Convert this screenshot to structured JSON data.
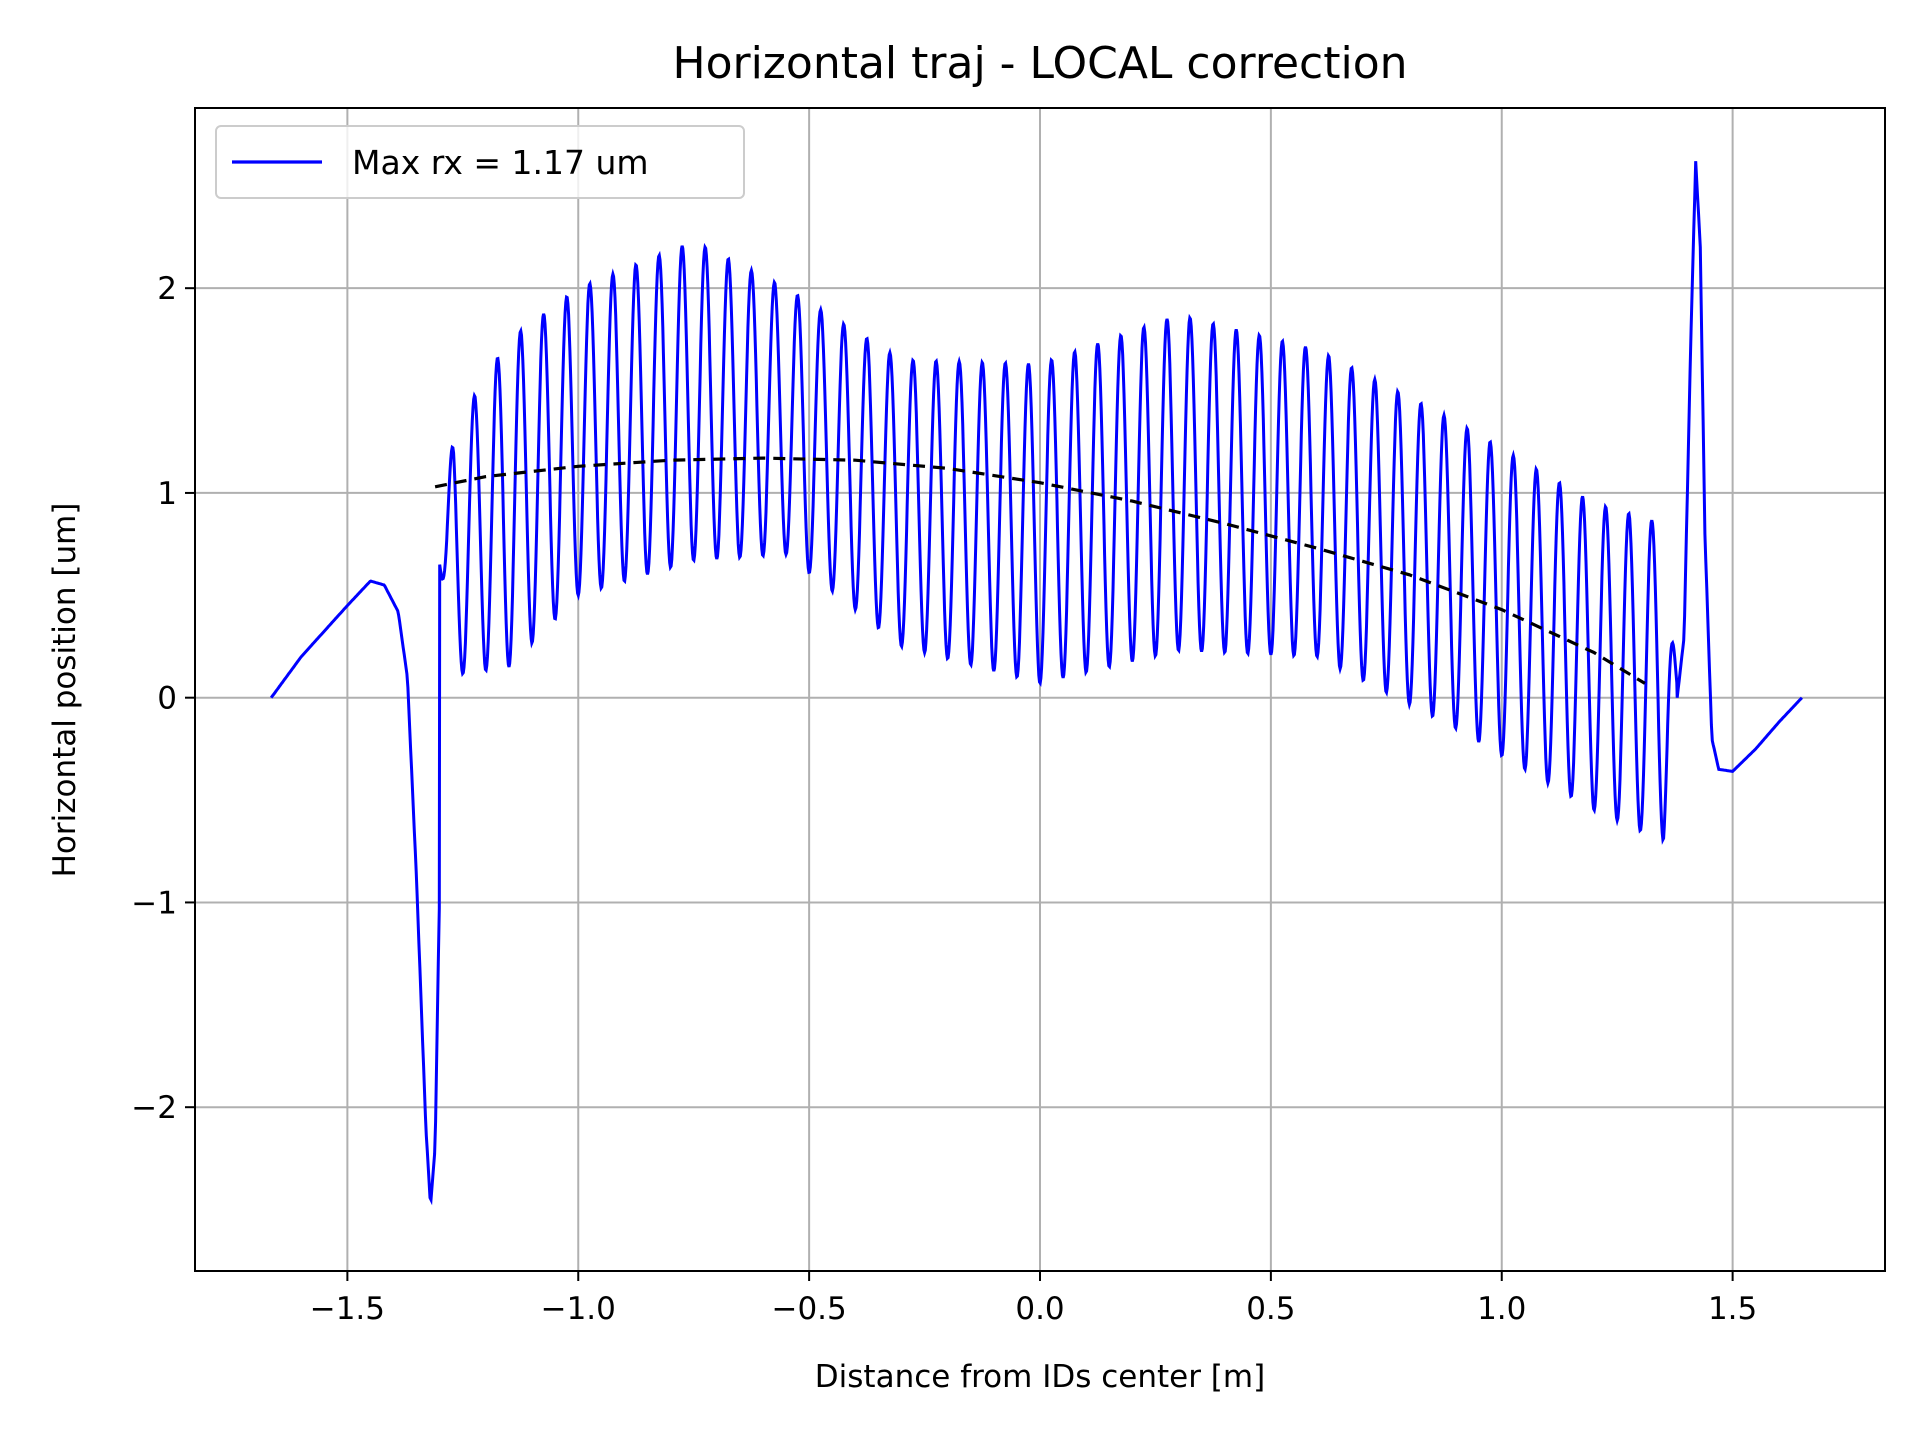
{
  "chart_data": {
    "type": "line",
    "title": "Horizontal traj - LOCAL correction",
    "xlabel": "Distance from IDs center [m]",
    "ylabel": "Horizontal position [um]",
    "xlim": [
      -1.83,
      1.83
    ],
    "ylim": [
      -2.8,
      2.88
    ],
    "x_ticks": [
      -1.5,
      -1.0,
      -0.5,
      0.0,
      0.5,
      1.0,
      1.5
    ],
    "x_tick_labels": [
      "−1.5",
      "−1.0",
      "−0.5",
      "0.0",
      "0.5",
      "1.0",
      "1.5"
    ],
    "y_ticks": [
      -2,
      -1,
      0,
      1,
      2
    ],
    "y_tick_labels": [
      "−2",
      "−1",
      "0",
      "1",
      "2"
    ],
    "grid": true,
    "legend": {
      "placement": "top-left",
      "entries": [
        "Max rx = 1.17 um"
      ]
    },
    "series": [
      {
        "name": "Max rx = 1.17 um",
        "color": "#0000ff",
        "style": "solid",
        "envelope": {
          "x_range": [
            -1.3,
            1.38
          ],
          "oscillation_period": 0.05,
          "mid_points": [
            [
              -1.3,
              0.65
            ],
            [
              -1.0,
              1.25
            ],
            [
              -0.75,
              1.45
            ],
            [
              -0.55,
              1.35
            ],
            [
              -0.3,
              0.95
            ],
            [
              0.0,
              0.85
            ],
            [
              0.3,
              1.05
            ],
            [
              0.6,
              0.95
            ],
            [
              0.9,
              0.6
            ],
            [
              1.2,
              0.2
            ],
            [
              1.38,
              0.05
            ]
          ],
          "amplitude_points": [
            [
              -1.3,
              0.55
            ],
            [
              -1.15,
              0.8
            ],
            [
              -1.0,
              0.75
            ],
            [
              -0.75,
              0.78
            ],
            [
              -0.55,
              0.65
            ],
            [
              -0.3,
              0.7
            ],
            [
              0.0,
              0.78
            ],
            [
              0.3,
              0.82
            ],
            [
              0.6,
              0.75
            ],
            [
              0.9,
              0.75
            ],
            [
              1.2,
              0.75
            ],
            [
              1.38,
              0.78
            ]
          ]
        },
        "edge_points": [
          [
            -1.665,
            0.0
          ],
          [
            -1.6,
            0.2
          ],
          [
            -1.5,
            0.45
          ],
          [
            -1.45,
            0.57
          ],
          [
            -1.42,
            0.55
          ],
          [
            -1.39,
            0.42
          ],
          [
            -1.37,
            0.1
          ],
          [
            -1.35,
            -0.9
          ],
          [
            -1.33,
            -2.1
          ],
          [
            -1.32,
            -2.48
          ],
          [
            -1.31,
            -2.2
          ],
          [
            -1.3,
            -0.9
          ],
          [
            1.38,
            0.0
          ],
          [
            1.395,
            0.3
          ],
          [
            1.41,
            1.8
          ],
          [
            1.42,
            2.62
          ],
          [
            1.43,
            2.2
          ],
          [
            1.44,
            0.8
          ],
          [
            1.455,
            -0.2
          ],
          [
            1.47,
            -0.35
          ],
          [
            1.5,
            -0.36
          ],
          [
            1.55,
            -0.25
          ],
          [
            1.6,
            -0.12
          ],
          [
            1.65,
            0.0
          ]
        ]
      },
      {
        "name": "",
        "color": "#000000",
        "style": "dashed",
        "points": [
          [
            -1.31,
            1.03
          ],
          [
            -1.2,
            1.08
          ],
          [
            -1.0,
            1.13
          ],
          [
            -0.8,
            1.16
          ],
          [
            -0.6,
            1.17
          ],
          [
            -0.4,
            1.16
          ],
          [
            -0.2,
            1.12
          ],
          [
            0.0,
            1.05
          ],
          [
            0.2,
            0.96
          ],
          [
            0.4,
            0.85
          ],
          [
            0.6,
            0.73
          ],
          [
            0.8,
            0.6
          ],
          [
            1.0,
            0.43
          ],
          [
            1.2,
            0.22
          ],
          [
            1.31,
            0.07
          ]
        ]
      }
    ]
  }
}
